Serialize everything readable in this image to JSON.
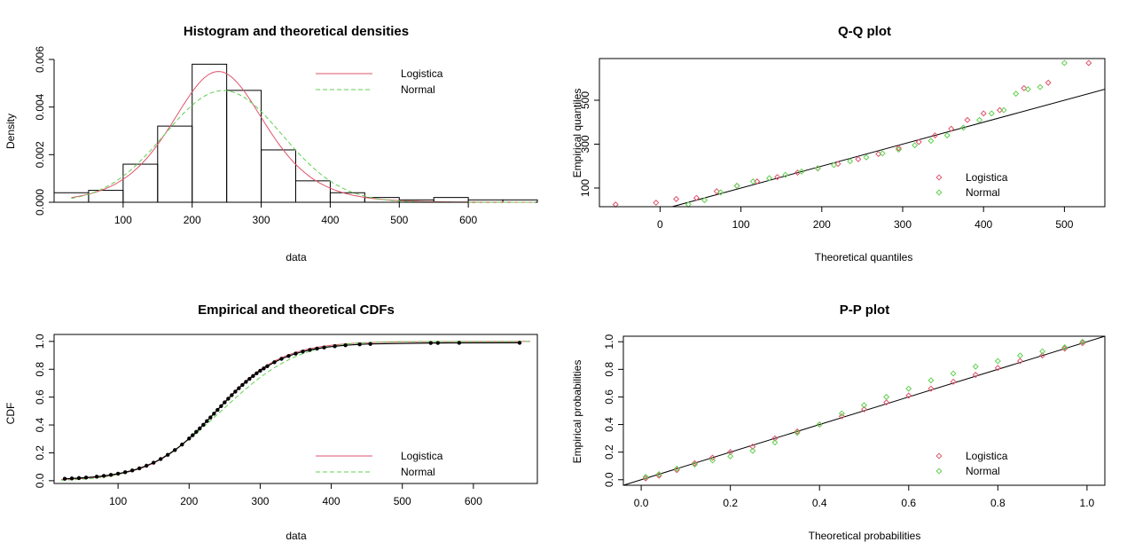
{
  "colors": {
    "logistica": "#DF536B",
    "normal": "#61D04F",
    "reference": "#000000",
    "ecdf": "#000000"
  },
  "chart_data": [
    {
      "id": "hist",
      "type": "bar",
      "title": "Histogram and theoretical densities",
      "xlabel": "data",
      "ylabel": "Density",
      "xlim": [
        0,
        700
      ],
      "ylim": [
        0,
        0.006
      ],
      "xticks": [
        100,
        200,
        300,
        400,
        500,
        600
      ],
      "yticks": [
        0.0,
        0.002,
        0.004,
        0.006
      ],
      "ytick_labels": [
        "0.000",
        "0.002",
        "0.004",
        "0.006"
      ],
      "bins": [
        [
          0,
          50
        ],
        [
          50,
          100
        ],
        [
          100,
          150
        ],
        [
          150,
          200
        ],
        [
          200,
          250
        ],
        [
          250,
          300
        ],
        [
          300,
          350
        ],
        [
          350,
          400
        ],
        [
          400,
          450
        ],
        [
          450,
          500
        ],
        [
          500,
          550
        ],
        [
          550,
          600
        ],
        [
          600,
          650
        ],
        [
          650,
          700
        ]
      ],
      "values": [
        0.0004,
        0.0005,
        0.0016,
        0.0032,
        0.0058,
        0.0047,
        0.0022,
        0.0009,
        0.0004,
        0.0002,
        0.0001,
        0.0002,
        0.0001,
        0.0001
      ],
      "series": [
        {
          "name": "Logistica",
          "dist": "logistic",
          "location": 238,
          "scale": 45.5,
          "color": "#DF536B",
          "dash": "solid"
        },
        {
          "name": "Normal",
          "dist": "normal",
          "mean": 245,
          "sd": 85,
          "color": "#61D04F",
          "dash": "dashed"
        }
      ],
      "curve_range": [
        25,
        700
      ],
      "legend": [
        "Logistica",
        "Normal"
      ],
      "legend_position": "top-right"
    },
    {
      "id": "qq",
      "type": "scatter",
      "title": "Q-Q plot",
      "xlabel": "Theoretical quantiles",
      "ylabel": "Empirical quantiles",
      "xlim": [
        -75,
        550
      ],
      "ylim": [
        15,
        690
      ],
      "xticks": [
        0,
        100,
        200,
        300,
        400,
        500
      ],
      "yticks": [
        100,
        300,
        500
      ],
      "reference_line": [
        [
          -75,
          -75
        ],
        [
          550,
          550
        ]
      ],
      "series": [
        {
          "name": "Logistica",
          "color": "#DF536B",
          "points": [
            [
              -55,
              25
            ],
            [
              -5,
              33
            ],
            [
              20,
              50
            ],
            [
              45,
              55
            ],
            [
              70,
              85
            ],
            [
              95,
              110
            ],
            [
              120,
              130
            ],
            [
              145,
              150
            ],
            [
              170,
              170
            ],
            [
              195,
              190
            ],
            [
              220,
              210
            ],
            [
              245,
              232
            ],
            [
              270,
              255
            ],
            [
              295,
              282
            ],
            [
              320,
              310
            ],
            [
              340,
              340
            ],
            [
              360,
              370
            ],
            [
              380,
              410
            ],
            [
              400,
              440
            ],
            [
              420,
              455
            ],
            [
              450,
              555
            ],
            [
              480,
              580
            ],
            [
              530,
              670
            ]
          ]
        },
        {
          "name": "Normal",
          "color": "#61D04F",
          "points": [
            [
              35,
              25
            ],
            [
              55,
              45
            ],
            [
              75,
              80
            ],
            [
              95,
              110
            ],
            [
              115,
              130
            ],
            [
              135,
              145
            ],
            [
              155,
              160
            ],
            [
              175,
              175
            ],
            [
              195,
              190
            ],
            [
              215,
              205
            ],
            [
              235,
              222
            ],
            [
              255,
              240
            ],
            [
              275,
              258
            ],
            [
              295,
              275
            ],
            [
              315,
              295
            ],
            [
              335,
              315
            ],
            [
              355,
              340
            ],
            [
              375,
              375
            ],
            [
              395,
              410
            ],
            [
              410,
              440
            ],
            [
              425,
              455
            ],
            [
              440,
              530
            ],
            [
              455,
              550
            ],
            [
              470,
              560
            ],
            [
              500,
              670
            ]
          ]
        }
      ],
      "legend": [
        "Logistica",
        "Normal"
      ],
      "legend_position": "bottom-right"
    },
    {
      "id": "cdf",
      "type": "line",
      "title": "Empirical and theoretical CDFs",
      "xlabel": "data",
      "ylabel": "CDF",
      "xlim": [
        10,
        690
      ],
      "ylim": [
        -0.02,
        1.05
      ],
      "xticks": [
        100,
        200,
        300,
        400,
        500,
        600
      ],
      "yticks": [
        0.0,
        0.2,
        0.4,
        0.6,
        0.8,
        1.0
      ],
      "ytick_labels": [
        "0.0",
        "0.2",
        "0.4",
        "0.6",
        "0.8",
        "1.0"
      ],
      "empirical_x": [
        25,
        35,
        45,
        55,
        70,
        80,
        90,
        100,
        110,
        120,
        130,
        140,
        150,
        160,
        170,
        180,
        190,
        200,
        205,
        210,
        215,
        220,
        225,
        230,
        235,
        240,
        245,
        250,
        255,
        260,
        265,
        270,
        275,
        280,
        285,
        290,
        295,
        300,
        305,
        310,
        320,
        330,
        340,
        350,
        360,
        370,
        380,
        390,
        405,
        420,
        440,
        455,
        540,
        550,
        580,
        665
      ],
      "series": [
        {
          "name": "Logistica",
          "dist": "logistic",
          "location": 238,
          "scale": 45.5,
          "color": "#DF536B",
          "dash": "solid"
        },
        {
          "name": "Normal",
          "dist": "normal",
          "mean": 245,
          "sd": 85,
          "color": "#61D04F",
          "dash": "dashed"
        }
      ],
      "legend": [
        "Logistica",
        "Normal"
      ],
      "legend_position": "bottom-right"
    },
    {
      "id": "pp",
      "type": "scatter",
      "title": "P-P plot",
      "xlabel": "Theoretical probabilities",
      "ylabel": "Empirical probabilities",
      "xlim": [
        -0.04,
        1.04
      ],
      "ylim": [
        -0.04,
        1.04
      ],
      "xticks": [
        0.0,
        0.2,
        0.4,
        0.6,
        0.8,
        1.0
      ],
      "yticks": [
        0.0,
        0.2,
        0.4,
        0.6,
        0.8,
        1.0
      ],
      "xtick_labels": [
        "0.0",
        "0.2",
        "0.4",
        "0.6",
        "0.8",
        "1.0"
      ],
      "ytick_labels": [
        "0.0",
        "0.2",
        "0.4",
        "0.6",
        "0.8",
        "1.0"
      ],
      "reference_line": [
        [
          -0.04,
          -0.04
        ],
        [
          1.04,
          1.04
        ]
      ],
      "series": [
        {
          "name": "Logistica",
          "color": "#DF536B",
          "points": [
            [
              0.01,
              0.01
            ],
            [
              0.04,
              0.03
            ],
            [
              0.08,
              0.07
            ],
            [
              0.12,
              0.12
            ],
            [
              0.16,
              0.16
            ],
            [
              0.2,
              0.2
            ],
            [
              0.25,
              0.24
            ],
            [
              0.3,
              0.3
            ],
            [
              0.35,
              0.35
            ],
            [
              0.4,
              0.4
            ],
            [
              0.45,
              0.46
            ],
            [
              0.5,
              0.51
            ],
            [
              0.55,
              0.56
            ],
            [
              0.6,
              0.61
            ],
            [
              0.65,
              0.66
            ],
            [
              0.7,
              0.71
            ],
            [
              0.75,
              0.76
            ],
            [
              0.8,
              0.81
            ],
            [
              0.85,
              0.86
            ],
            [
              0.9,
              0.9
            ],
            [
              0.95,
              0.95
            ],
            [
              0.99,
              0.99
            ]
          ]
        },
        {
          "name": "Normal",
          "color": "#61D04F",
          "points": [
            [
              0.01,
              0.02
            ],
            [
              0.04,
              0.04
            ],
            [
              0.08,
              0.08
            ],
            [
              0.12,
              0.11
            ],
            [
              0.16,
              0.14
            ],
            [
              0.2,
              0.17
            ],
            [
              0.25,
              0.21
            ],
            [
              0.3,
              0.27
            ],
            [
              0.35,
              0.34
            ],
            [
              0.4,
              0.4
            ],
            [
              0.45,
              0.48
            ],
            [
              0.5,
              0.54
            ],
            [
              0.55,
              0.6
            ],
            [
              0.6,
              0.66
            ],
            [
              0.65,
              0.72
            ],
            [
              0.7,
              0.77
            ],
            [
              0.75,
              0.82
            ],
            [
              0.8,
              0.86
            ],
            [
              0.85,
              0.9
            ],
            [
              0.9,
              0.93
            ],
            [
              0.95,
              0.96
            ],
            [
              0.99,
              1.0
            ]
          ]
        }
      ],
      "legend": [
        "Logistica",
        "Normal"
      ],
      "legend_position": "bottom-right"
    }
  ]
}
